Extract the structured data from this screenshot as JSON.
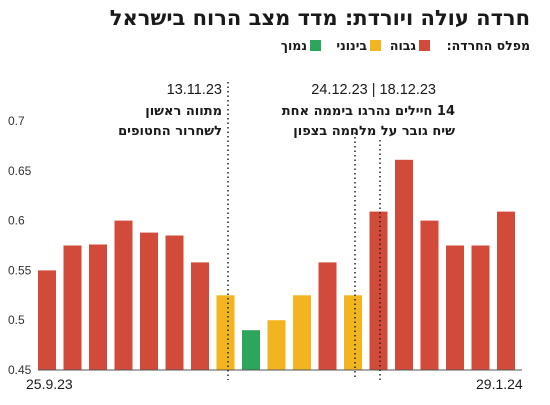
{
  "title": "חרדה עולה ויורדת: מדד מצב הרוח בישראל",
  "legend": {
    "label": "מפלס החרדה:",
    "items": [
      {
        "name": "גבוה",
        "color": "#d24a3a"
      },
      {
        "name": "בינוני",
        "color": "#f2b51f"
      },
      {
        "name": "נמוך",
        "color": "#2da55c"
      }
    ]
  },
  "annotations": [
    {
      "date": "13.11.23",
      "lines": [
        "מתווה ראשון",
        "לשחרור החטופים"
      ]
    },
    {
      "date": "24.12.23 | 18.12.23",
      "lines": [
        "14 חיילים נהרגו ביממה אחת",
        "שיח גובר על מלחמה בצפון"
      ]
    }
  ],
  "chart_data": {
    "type": "bar",
    "title": "חרדה עולה ויורדת: מדד מצב הרוח בישראל",
    "xlabel": "",
    "ylabel": "",
    "ylim": [
      0.45,
      0.7
    ],
    "yticks": [
      "0.45",
      "0.5",
      "0.55",
      "0.6",
      "0.65",
      "0.7"
    ],
    "grid": false,
    "legend_position": "top",
    "x_start_label": "25.9.23",
    "x_end_label": "29.1.24",
    "values": [
      0.55,
      0.575,
      0.576,
      0.6,
      0.588,
      0.585,
      0.558,
      0.525,
      0.49,
      0.5,
      0.525,
      0.558,
      0.525,
      0.609,
      0.661,
      0.6,
      0.575,
      0.575,
      0.609
    ],
    "levels": [
      "גבוה",
      "גבוה",
      "גבוה",
      "גבוה",
      "גבוה",
      "גבוה",
      "גבוה",
      "בינוני",
      "נמוך",
      "בינוני",
      "בינוני",
      "גבוה",
      "בינוני",
      "גבוה",
      "גבוה",
      "גבוה",
      "גבוה",
      "גבוה",
      "גבוה"
    ],
    "colors": {
      "גבוה": "#d24a3a",
      "בינוני": "#f2b51f",
      "נמוך": "#2da55c"
    }
  }
}
